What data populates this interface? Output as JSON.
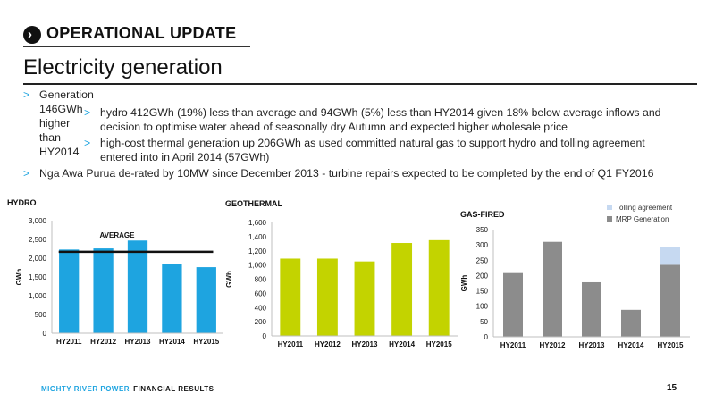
{
  "header": {
    "section_title": "OPERATIONAL UPDATE",
    "page_title": "Electricity generation"
  },
  "bullets": [
    {
      "level": 1,
      "text": "Generation 146GWh higher than HY2014"
    },
    {
      "level": 2,
      "line1": "hydro 412GWh (19%) less than average and 94GWh (5%) less than HY2014 given 18% below average inflows and",
      "line2": "decision to optimise water ahead of seasonally dry Autumn and expected higher wholesale price"
    },
    {
      "level": 2,
      "line1": "high-cost thermal generation up 206GWh as used committed natural gas to support hydro and tolling agreement",
      "line2": "entered into in April 2014 (57GWh)"
    },
    {
      "level": 1,
      "text": "Nga Awa Purua de-rated by 10MW since December 2013 - turbine repairs expected to be completed by the end of Q1 FY2016"
    }
  ],
  "chart_data": [
    {
      "type": "bar",
      "title": "HYDRO",
      "ylabel": "GWh",
      "categories": [
        "HY2011",
        "HY2012",
        "HY2013",
        "HY2014",
        "HY2015"
      ],
      "values": [
        2230,
        2260,
        2470,
        1850,
        1760
      ],
      "ylim": [
        0,
        3000
      ],
      "yticks": [
        "0",
        "500",
        "1,000",
        "1,500",
        "2,000",
        "2,500",
        "3,000"
      ],
      "color": "#1ea4e0",
      "annotation": {
        "label": "AVERAGE",
        "value": 2170
      }
    },
    {
      "type": "bar",
      "title": "GEOTHERMAL",
      "ylabel": "GWh",
      "categories": [
        "HY2011",
        "HY2012",
        "HY2013",
        "HY2014",
        "HY2015"
      ],
      "values": [
        1090,
        1090,
        1050,
        1310,
        1350
      ],
      "ylim": [
        0,
        1600
      ],
      "yticks": [
        "0",
        "200",
        "400",
        "600",
        "800",
        "1,000",
        "1,200",
        "1,400",
        "1,600"
      ],
      "color": "#c3d300"
    },
    {
      "type": "bar",
      "title": "GAS-FIRED",
      "ylabel": "GWh",
      "stacked": true,
      "categories": [
        "HY2011",
        "HY2012",
        "HY2013",
        "HY2014",
        "HY2015"
      ],
      "series": [
        {
          "name": "MRP Generation",
          "values": [
            208,
            310,
            178,
            88,
            235
          ],
          "color": "#8c8c8c"
        },
        {
          "name": "Tolling agreement",
          "values": [
            0,
            0,
            0,
            0,
            57
          ],
          "color": "#c6d9f1"
        }
      ],
      "ylim": [
        0,
        350
      ],
      "yticks": [
        "0",
        "50",
        "100",
        "150",
        "200",
        "250",
        "300",
        "350"
      ],
      "legend_position": "top-right"
    }
  ],
  "footer": {
    "brand": "MIGHTY RIVER POWER",
    "subtitle": "FINANCIAL RESULTS",
    "page_number": "15"
  }
}
